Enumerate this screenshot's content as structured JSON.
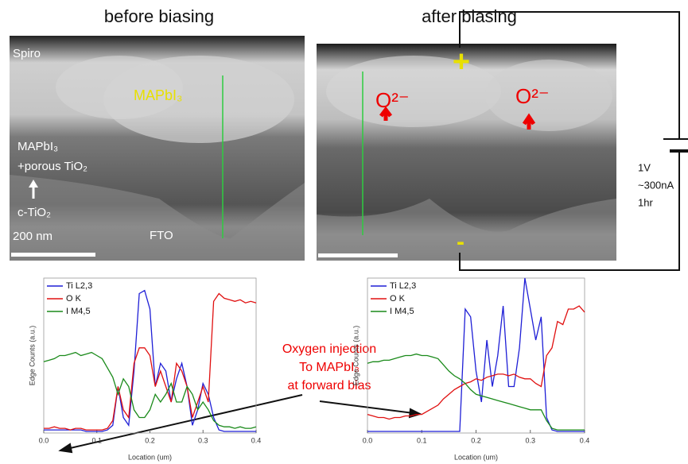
{
  "headings": [
    "before biasing",
    "after biasing"
  ],
  "before_image": {
    "spiro": "Spiro",
    "mapbi3": "MAPbI₃",
    "mixed_line1": "MAPbI₃",
    "mixed_line2": "+porous TiO₂",
    "ctio2": "c-TiO₂",
    "scale": "200 nm",
    "fto": "FTO"
  },
  "after_image": {
    "ion_left": "O²⁻",
    "ion_right": "O²⁻",
    "plus": "+",
    "minus": "-"
  },
  "circuit": {
    "voltage": "1V",
    "current": "~300nA",
    "duration": "1hr"
  },
  "annotation": [
    "Oxygen injection",
    "To MAPbI₃",
    "at forward bias"
  ],
  "chart_data": [
    {
      "type": "line",
      "xlabel": "Location (um)",
      "ylabel": "Edge Counts (a.u.)",
      "xlim": [
        0,
        0.4
      ],
      "ylim": [
        0,
        1
      ],
      "xticks": [
        {
          "value": 0,
          "label": "0.0"
        },
        0.1,
        0.2,
        0.3,
        0.4
      ],
      "legend": "upper left",
      "x": [
        0,
        0.01,
        0.02,
        0.03,
        0.04,
        0.05,
        0.06,
        0.07,
        0.08,
        0.09,
        0.1,
        0.11,
        0.12,
        0.13,
        0.14,
        0.15,
        0.16,
        0.17,
        0.18,
        0.19,
        0.2,
        0.21,
        0.22,
        0.23,
        0.24,
        0.25,
        0.26,
        0.27,
        0.28,
        0.29,
        0.3,
        0.31,
        0.32,
        0.33,
        0.34,
        0.35,
        0.36,
        0.37,
        0.38,
        0.39,
        0.4
      ],
      "series": [
        {
          "name": "Ti L2,3",
          "color": "#1f1fd6",
          "values": [
            0.02,
            0.02,
            0.02,
            0.02,
            0.02,
            0.02,
            0.02,
            0.02,
            0.01,
            0.01,
            0.01,
            0.01,
            0.02,
            0.05,
            0.3,
            0.1,
            0.05,
            0.4,
            0.9,
            0.92,
            0.8,
            0.3,
            0.45,
            0.4,
            0.2,
            0.35,
            0.45,
            0.3,
            0.05,
            0.15,
            0.32,
            0.25,
            0.1,
            0.02,
            0.01,
            0.01,
            0.01,
            0.01,
            0.01,
            0.01,
            0.01
          ]
        },
        {
          "name": "O K",
          "color": "#e01010",
          "values": [
            0.03,
            0.03,
            0.04,
            0.03,
            0.03,
            0.02,
            0.03,
            0.03,
            0.02,
            0.02,
            0.02,
            0.02,
            0.03,
            0.08,
            0.3,
            0.15,
            0.1,
            0.45,
            0.55,
            0.55,
            0.5,
            0.3,
            0.4,
            0.3,
            0.2,
            0.45,
            0.4,
            0.3,
            0.1,
            0.2,
            0.3,
            0.2,
            0.85,
            0.9,
            0.87,
            0.86,
            0.85,
            0.86,
            0.84,
            0.85,
            0.84
          ]
        },
        {
          "name": "I M4,5",
          "color": "#1a8a1a",
          "values": [
            0.46,
            0.47,
            0.48,
            0.5,
            0.5,
            0.51,
            0.52,
            0.5,
            0.51,
            0.52,
            0.5,
            0.48,
            0.42,
            0.36,
            0.25,
            0.35,
            0.3,
            0.15,
            0.1,
            0.1,
            0.15,
            0.25,
            0.2,
            0.25,
            0.32,
            0.2,
            0.2,
            0.3,
            0.25,
            0.15,
            0.2,
            0.15,
            0.08,
            0.05,
            0.04,
            0.04,
            0.03,
            0.04,
            0.03,
            0.03,
            0.04
          ]
        }
      ]
    },
    {
      "type": "line",
      "xlabel": "Location (um)",
      "ylabel": "Edge Counts (a.u.)",
      "xlim": [
        0,
        0.4
      ],
      "ylim": [
        0,
        1
      ],
      "xticks": [
        {
          "value": 0,
          "label": "0.0"
        },
        0.1,
        0.2,
        0.3,
        0.4
      ],
      "legend": "upper left",
      "x": [
        0,
        0.01,
        0.02,
        0.03,
        0.04,
        0.05,
        0.06,
        0.07,
        0.08,
        0.09,
        0.1,
        0.11,
        0.12,
        0.13,
        0.14,
        0.15,
        0.16,
        0.17,
        0.18,
        0.19,
        0.2,
        0.21,
        0.22,
        0.23,
        0.24,
        0.25,
        0.26,
        0.27,
        0.28,
        0.29,
        0.3,
        0.31,
        0.32,
        0.33,
        0.34,
        0.35,
        0.36,
        0.37,
        0.38,
        0.39,
        0.4
      ],
      "series": [
        {
          "name": "Ti L2,3",
          "color": "#1f1fd6",
          "values": [
            0.01,
            0.01,
            0.01,
            0.01,
            0.01,
            0.01,
            0.01,
            0.01,
            0.01,
            0.01,
            0.01,
            0.01,
            0.01,
            0.01,
            0.01,
            0.01,
            0.01,
            0.01,
            0.8,
            0.75,
            0.4,
            0.2,
            0.6,
            0.3,
            0.5,
            0.82,
            0.3,
            0.3,
            0.55,
            1.0,
            0.8,
            0.6,
            0.75,
            0.1,
            0.02,
            0.01,
            0.01,
            0.01,
            0.01,
            0.01,
            0.01
          ]
        },
        {
          "name": "O K",
          "color": "#e01010",
          "values": [
            0.12,
            0.11,
            0.1,
            0.1,
            0.09,
            0.1,
            0.1,
            0.11,
            0.11,
            0.12,
            0.12,
            0.14,
            0.16,
            0.18,
            0.22,
            0.25,
            0.28,
            0.3,
            0.32,
            0.33,
            0.35,
            0.34,
            0.36,
            0.37,
            0.38,
            0.38,
            0.37,
            0.38,
            0.36,
            0.35,
            0.35,
            0.32,
            0.3,
            0.5,
            0.55,
            0.72,
            0.7,
            0.8,
            0.8,
            0.82,
            0.78
          ]
        },
        {
          "name": "I M4,5",
          "color": "#1a8a1a",
          "values": [
            0.45,
            0.46,
            0.46,
            0.47,
            0.47,
            0.48,
            0.49,
            0.5,
            0.5,
            0.51,
            0.5,
            0.5,
            0.49,
            0.48,
            0.44,
            0.4,
            0.37,
            0.35,
            0.32,
            0.28,
            0.25,
            0.24,
            0.23,
            0.22,
            0.21,
            0.2,
            0.19,
            0.18,
            0.17,
            0.16,
            0.15,
            0.15,
            0.15,
            0.08,
            0.03,
            0.02,
            0.02,
            0.02,
            0.02,
            0.02,
            0.02
          ]
        }
      ]
    }
  ]
}
